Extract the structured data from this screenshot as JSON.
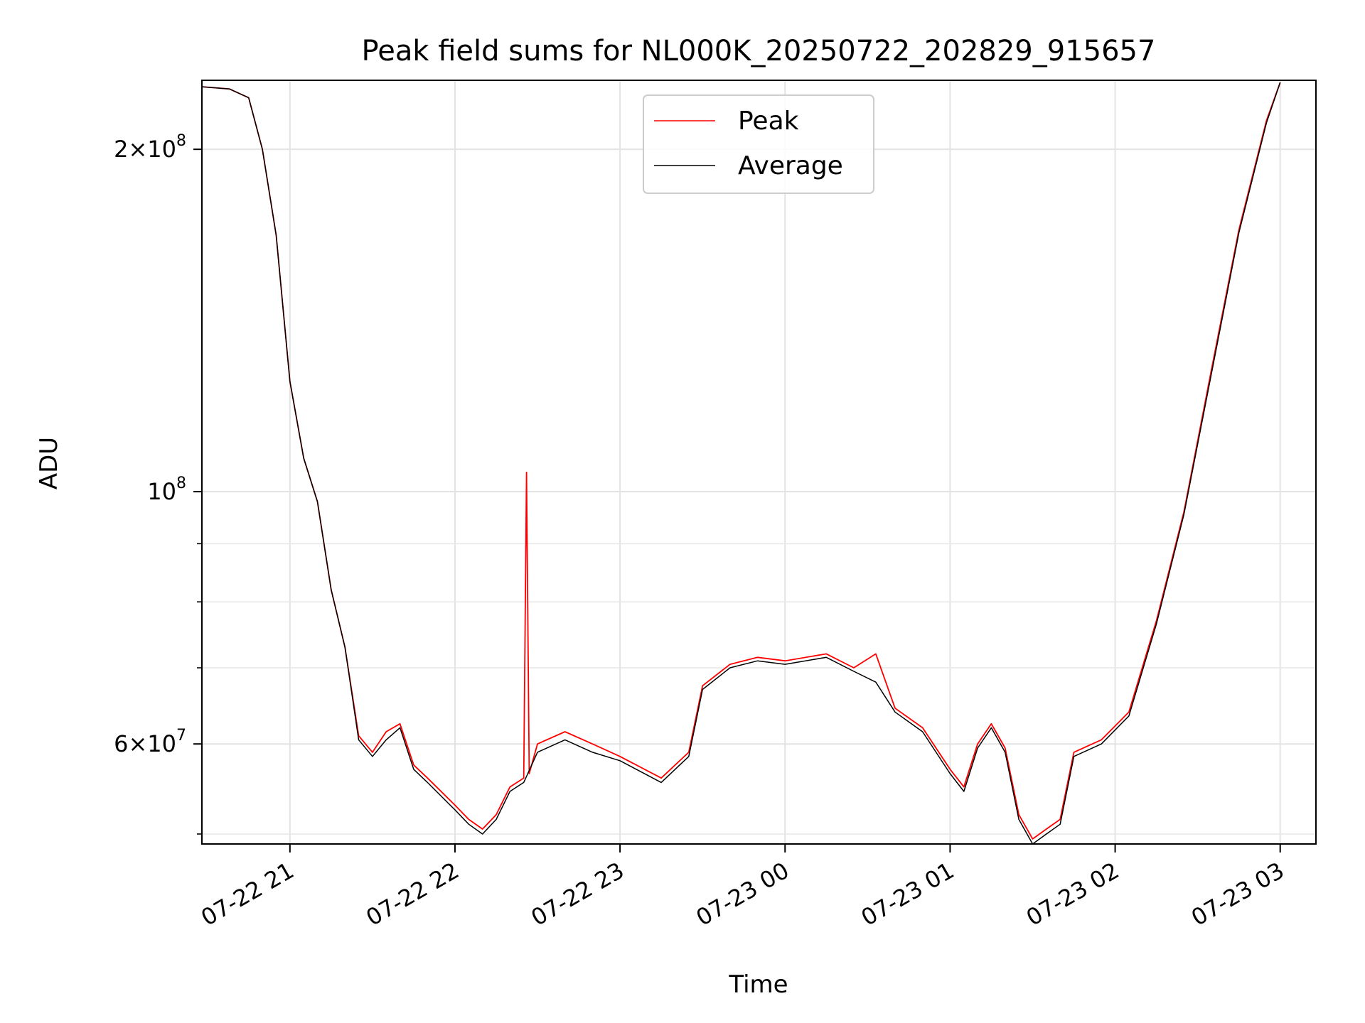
{
  "chart_data": {
    "type": "line",
    "title": "Peak field sums for NL000K_20250722_202829_915657",
    "xlabel": "Time",
    "ylabel": "ADU",
    "yscale": "log",
    "grid": true,
    "legend_position": "top-center",
    "xlim": [
      "2025-07-22 20:28",
      "2025-07-23 03:13"
    ],
    "ylim": [
      49000000,
      230000000
    ],
    "x_ticks": [
      {
        "value": "2025-07-22 21:00",
        "label": "07-22 21"
      },
      {
        "value": "2025-07-22 22:00",
        "label": "07-22 22"
      },
      {
        "value": "2025-07-22 23:00",
        "label": "07-22 23"
      },
      {
        "value": "2025-07-23 00:00",
        "label": "07-23 00"
      },
      {
        "value": "2025-07-23 01:00",
        "label": "07-23 01"
      },
      {
        "value": "2025-07-23 02:00",
        "label": "07-23 02"
      },
      {
        "value": "2025-07-23 03:00",
        "label": "07-23 03"
      }
    ],
    "y_major_ticks": [
      {
        "value": 200000000,
        "base": "2",
        "exp": "8"
      },
      {
        "value": 100000000,
        "base": "",
        "exp": "8"
      },
      {
        "value": 60000000,
        "base": "6",
        "exp": "7"
      }
    ],
    "y_minor_ticks": [
      50000000,
      70000000,
      80000000,
      90000000
    ],
    "series": [
      {
        "name": "Peak",
        "color": "#ff0000",
        "points": [
          [
            "2025-07-22 20:28",
            227000000
          ],
          [
            "2025-07-22 20:38",
            226000000
          ],
          [
            "2025-07-22 20:45",
            222000000
          ],
          [
            "2025-07-22 20:50",
            200000000
          ],
          [
            "2025-07-22 20:55",
            168000000
          ],
          [
            "2025-07-22 21:00",
            125000000
          ],
          [
            "2025-07-22 21:05",
            107000000
          ],
          [
            "2025-07-22 21:10",
            98000000
          ],
          [
            "2025-07-22 21:15",
            82000000
          ],
          [
            "2025-07-22 21:20",
            73000000
          ],
          [
            "2025-07-22 21:25",
            61000000
          ],
          [
            "2025-07-22 21:30",
            59000000
          ],
          [
            "2025-07-22 21:35",
            61500000
          ],
          [
            "2025-07-22 21:40",
            62500000
          ],
          [
            "2025-07-22 21:45",
            57500000
          ],
          [
            "2025-07-22 21:50",
            56000000
          ],
          [
            "2025-07-22 22:00",
            53000000
          ],
          [
            "2025-07-22 22:05",
            51500000
          ],
          [
            "2025-07-22 22:10",
            50500000
          ],
          [
            "2025-07-22 22:15",
            52000000
          ],
          [
            "2025-07-22 22:20",
            55000000
          ],
          [
            "2025-07-22 22:25",
            56000000
          ],
          [
            "2025-07-22 22:26",
            104000000
          ],
          [
            "2025-07-22 22:27",
            56500000
          ],
          [
            "2025-07-22 22:30",
            60000000
          ],
          [
            "2025-07-22 22:40",
            61500000
          ],
          [
            "2025-07-22 22:50",
            60000000
          ],
          [
            "2025-07-22 23:00",
            58500000
          ],
          [
            "2025-07-22 23:15",
            56000000
          ],
          [
            "2025-07-22 23:25",
            59000000
          ],
          [
            "2025-07-22 23:30",
            67500000
          ],
          [
            "2025-07-22 23:40",
            70500000
          ],
          [
            "2025-07-22 23:50",
            71500000
          ],
          [
            "2025-07-23 00:00",
            71000000
          ],
          [
            "2025-07-23 00:15",
            72000000
          ],
          [
            "2025-07-23 00:25",
            70000000
          ],
          [
            "2025-07-23 00:33",
            72000000
          ],
          [
            "2025-07-23 00:40",
            64500000
          ],
          [
            "2025-07-23 00:50",
            62000000
          ],
          [
            "2025-07-23 01:00",
            57000000
          ],
          [
            "2025-07-23 01:05",
            55000000
          ],
          [
            "2025-07-23 01:10",
            60000000
          ],
          [
            "2025-07-23 01:15",
            62500000
          ],
          [
            "2025-07-23 01:20",
            59500000
          ],
          [
            "2025-07-23 01:25",
            52000000
          ],
          [
            "2025-07-23 01:30",
            49500000
          ],
          [
            "2025-07-23 01:35",
            50500000
          ],
          [
            "2025-07-23 01:40",
            51500000
          ],
          [
            "2025-07-23 01:45",
            59000000
          ],
          [
            "2025-07-23 01:55",
            60500000
          ],
          [
            "2025-07-23 02:05",
            64000000
          ],
          [
            "2025-07-23 02:15",
            77000000
          ],
          [
            "2025-07-23 02:25",
            96000000
          ],
          [
            "2025-07-23 02:35",
            128000000
          ],
          [
            "2025-07-23 02:45",
            170000000
          ],
          [
            "2025-07-23 02:55",
            212000000
          ],
          [
            "2025-07-23 03:00",
            229000000
          ]
        ]
      },
      {
        "name": "Average",
        "color": "#000000",
        "points": [
          [
            "2025-07-22 20:28",
            227000000
          ],
          [
            "2025-07-22 20:38",
            226000000
          ],
          [
            "2025-07-22 20:45",
            222000000
          ],
          [
            "2025-07-22 20:50",
            200000000
          ],
          [
            "2025-07-22 20:55",
            168000000
          ],
          [
            "2025-07-22 21:00",
            125000000
          ],
          [
            "2025-07-22 21:05",
            107000000
          ],
          [
            "2025-07-22 21:10",
            98000000
          ],
          [
            "2025-07-22 21:15",
            82000000
          ],
          [
            "2025-07-22 21:20",
            73000000
          ],
          [
            "2025-07-22 21:25",
            60500000
          ],
          [
            "2025-07-22 21:30",
            58500000
          ],
          [
            "2025-07-22 21:35",
            60500000
          ],
          [
            "2025-07-22 21:40",
            62000000
          ],
          [
            "2025-07-22 21:45",
            57000000
          ],
          [
            "2025-07-22 21:50",
            55500000
          ],
          [
            "2025-07-22 22:00",
            52500000
          ],
          [
            "2025-07-22 22:05",
            51000000
          ],
          [
            "2025-07-22 22:10",
            50000000
          ],
          [
            "2025-07-22 22:15",
            51500000
          ],
          [
            "2025-07-22 22:20",
            54500000
          ],
          [
            "2025-07-22 22:25",
            55500000
          ],
          [
            "2025-07-22 22:30",
            59000000
          ],
          [
            "2025-07-22 22:40",
            60500000
          ],
          [
            "2025-07-22 22:50",
            59000000
          ],
          [
            "2025-07-22 23:00",
            58000000
          ],
          [
            "2025-07-22 23:15",
            55500000
          ],
          [
            "2025-07-22 23:25",
            58500000
          ],
          [
            "2025-07-22 23:30",
            67000000
          ],
          [
            "2025-07-22 23:40",
            70000000
          ],
          [
            "2025-07-22 23:50",
            71000000
          ],
          [
            "2025-07-23 00:00",
            70500000
          ],
          [
            "2025-07-23 00:15",
            71500000
          ],
          [
            "2025-07-23 00:25",
            69500000
          ],
          [
            "2025-07-23 00:33",
            68000000
          ],
          [
            "2025-07-23 00:40",
            64000000
          ],
          [
            "2025-07-23 00:50",
            61500000
          ],
          [
            "2025-07-23 01:00",
            56500000
          ],
          [
            "2025-07-23 01:05",
            54500000
          ],
          [
            "2025-07-23 01:10",
            59500000
          ],
          [
            "2025-07-23 01:15",
            62000000
          ],
          [
            "2025-07-23 01:20",
            59000000
          ],
          [
            "2025-07-23 01:25",
            51500000
          ],
          [
            "2025-07-23 01:30",
            49000000
          ],
          [
            "2025-07-23 01:35",
            50000000
          ],
          [
            "2025-07-23 01:40",
            51000000
          ],
          [
            "2025-07-23 01:45",
            58500000
          ],
          [
            "2025-07-23 01:55",
            60000000
          ],
          [
            "2025-07-23 02:05",
            63500000
          ],
          [
            "2025-07-23 02:15",
            76500000
          ],
          [
            "2025-07-23 02:25",
            95500000
          ],
          [
            "2025-07-23 02:35",
            127000000
          ],
          [
            "2025-07-23 02:45",
            169000000
          ],
          [
            "2025-07-23 02:55",
            211000000
          ],
          [
            "2025-07-23 03:00",
            229000000
          ]
        ]
      }
    ]
  }
}
